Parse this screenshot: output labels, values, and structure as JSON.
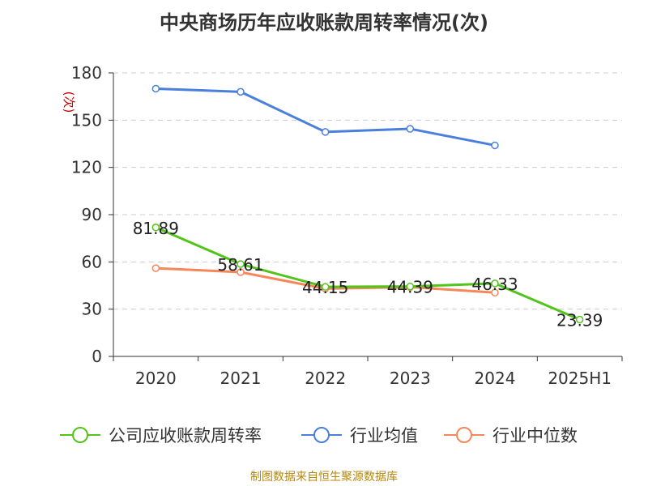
{
  "chart_data": {
    "type": "line",
    "title": "中央商场历年应收账款周转率情况(次)",
    "ylabel": "(次)",
    "xlabel": "",
    "categories": [
      "2020",
      "2021",
      "2022",
      "2023",
      "2024",
      "2025H1"
    ],
    "y_ticks": [
      "0",
      "30",
      "60",
      "90",
      "120",
      "150",
      "180"
    ],
    "ylim": [
      0,
      180
    ],
    "grid": true,
    "legend_position": "bottom",
    "series": [
      {
        "name": "公司应收账款周转率",
        "color": "#52c41a",
        "values": [
          81.89,
          58.61,
          44.15,
          44.39,
          46.33,
          23.39
        ],
        "labels": [
          "81.89",
          "58.61",
          "44.15",
          "44.39",
          "46.33",
          "23.39"
        ]
      },
      {
        "name": "行业均值",
        "color": "#4a7fdc",
        "values": [
          170,
          168,
          142.5,
          144.5,
          134,
          null
        ]
      },
      {
        "name": "行业中位数",
        "color": "#f5875a",
        "values": [
          56,
          53.5,
          43,
          44,
          40.5,
          null
        ]
      }
    ]
  },
  "footer": {
    "source": "制图数据来自恒生聚源数据库"
  }
}
